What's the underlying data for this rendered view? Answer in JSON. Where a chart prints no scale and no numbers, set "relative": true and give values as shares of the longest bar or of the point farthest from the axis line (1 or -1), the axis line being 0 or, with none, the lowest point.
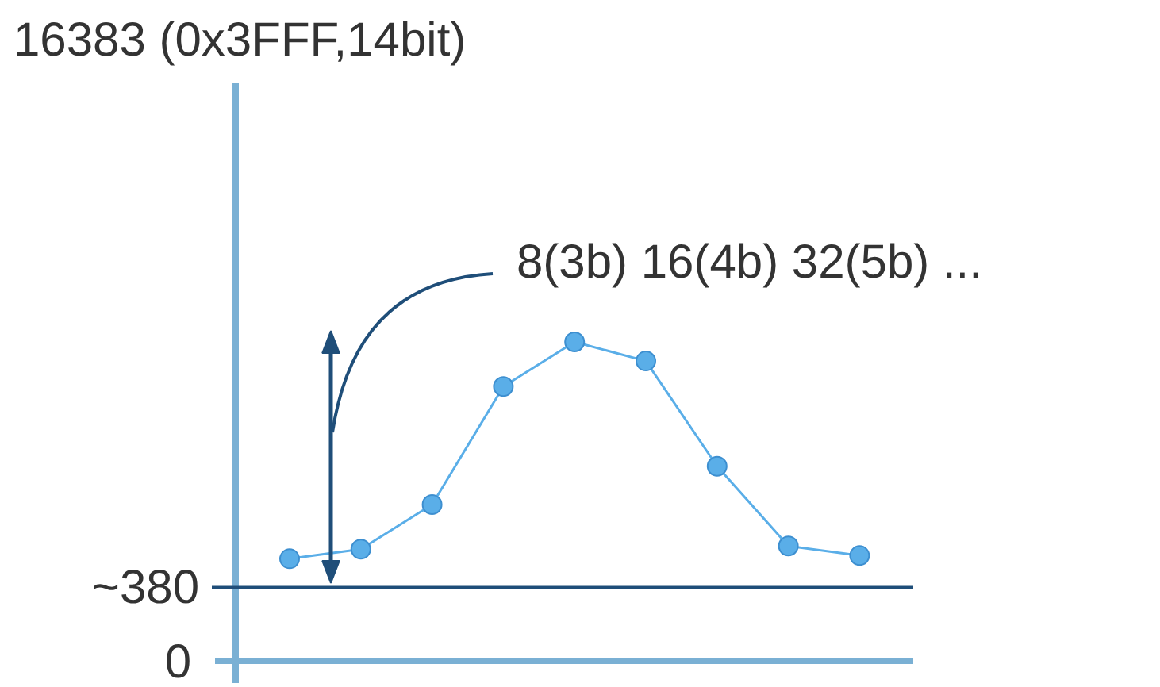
{
  "chart_data": {
    "type": "line",
    "relative": true,
    "categories": [
      null,
      null,
      null,
      null,
      null,
      null,
      null,
      null,
      null
    ],
    "series": [
      {
        "color": "#5aaee8",
        "values": [
          0.32,
          0.35,
          0.49,
          0.86,
          1,
          0.94,
          0.61,
          0.36,
          0.33
        ]
      }
    ],
    "marker": "circle",
    "line_style": "solid",
    "grid": false,
    "ref_lines": [
      {
        "axis": "y",
        "value": 0.23,
        "color": "#1f4e79"
      }
    ],
    "annotations": [
      "16383 (0x3FFF,14bit)",
      "0",
      "8(3b) 16(4b) 32(5b) ...",
      "~380"
    ]
  }
}
